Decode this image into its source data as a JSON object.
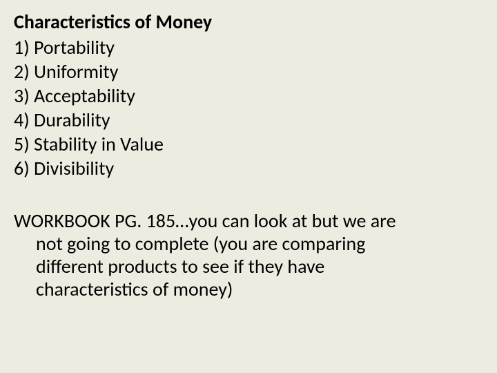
{
  "background_color": "#eeece1",
  "text_color": "#000000",
  "font_family": "Calibri",
  "heading": {
    "text": "Characteristics of Money",
    "fontsize": 28,
    "weight": 700
  },
  "list": {
    "fontsize": 28,
    "weight": 400,
    "items": [
      "1) Portability",
      "2) Uniformity",
      "3) Acceptability",
      "4) Durability",
      "5) Stability in Value",
      "6) Divisibility"
    ]
  },
  "body": {
    "fontsize": 28,
    "weight": 400,
    "lines": [
      {
        "text": "WORKBOOK PG. 185…you can look at but we are",
        "indent": false
      },
      {
        "text": "not going to complete (you are comparing",
        "indent": true
      },
      {
        "text": "different products to see if they have",
        "indent": true
      },
      {
        "text": "characteristics of money)",
        "indent": true
      }
    ]
  }
}
